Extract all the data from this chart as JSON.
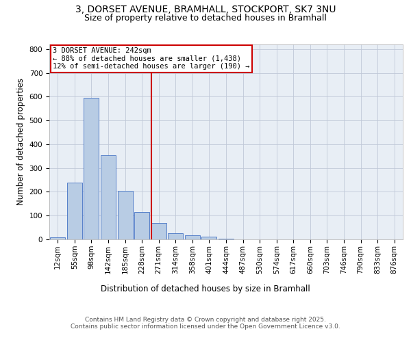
{
  "title_line1": "3, DORSET AVENUE, BRAMHALL, STOCKPORT, SK7 3NU",
  "title_line2": "Size of property relative to detached houses in Bramhall",
  "xlabel": "Distribution of detached houses by size in Bramhall",
  "ylabel": "Number of detached properties",
  "bar_labels": [
    "12sqm",
    "55sqm",
    "98sqm",
    "142sqm",
    "185sqm",
    "228sqm",
    "271sqm",
    "314sqm",
    "358sqm",
    "401sqm",
    "444sqm",
    "487sqm",
    "530sqm",
    "574sqm",
    "617sqm",
    "660sqm",
    "703sqm",
    "746sqm",
    "790sqm",
    "833sqm",
    "876sqm"
  ],
  "bar_values": [
    8,
    238,
    596,
    355,
    205,
    115,
    70,
    27,
    17,
    12,
    3,
    0,
    0,
    0,
    0,
    0,
    0,
    0,
    0,
    0,
    0
  ],
  "bar_color": "#b8cce4",
  "bar_edgecolor": "#4472c4",
  "vline_x": 5.58,
  "vline_color": "#cc0000",
  "annotation_text": "3 DORSET AVENUE: 242sqm\n← 88% of detached houses are smaller (1,438)\n12% of semi-detached houses are larger (190) →",
  "box_color": "#cc0000",
  "ylim": [
    0,
    820
  ],
  "yticks": [
    0,
    100,
    200,
    300,
    400,
    500,
    600,
    700,
    800
  ],
  "grid_color": "#c0c8d8",
  "background_color": "#e8eef5",
  "footer_text": "Contains HM Land Registry data © Crown copyright and database right 2025.\nContains public sector information licensed under the Open Government Licence v3.0.",
  "title_fontsize": 10,
  "subtitle_fontsize": 9,
  "axis_label_fontsize": 8.5,
  "tick_fontsize": 7.5,
  "annotation_fontsize": 7.5,
  "footer_fontsize": 6.5
}
